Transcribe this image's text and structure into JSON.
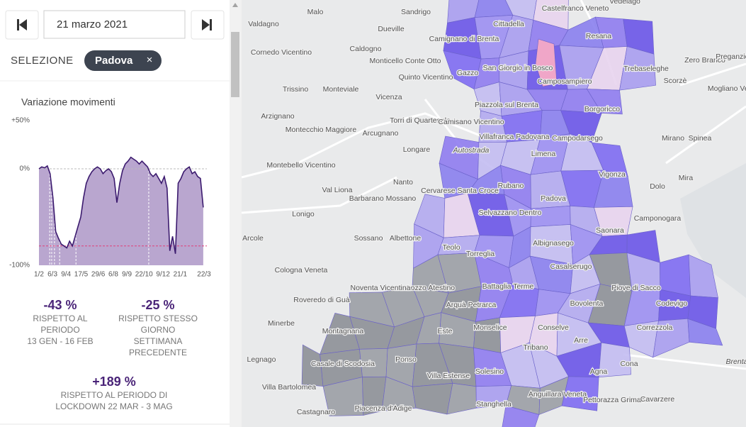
{
  "header": {
    "date": "21 marzo 2021"
  },
  "selection": {
    "label": "SELEZIONE",
    "value": "Padova",
    "remove": "×"
  },
  "chart_data": {
    "type": "area",
    "title": "Variazione movimenti",
    "x": [
      0,
      7,
      14,
      21,
      28,
      35,
      42,
      49,
      56,
      63,
      70,
      77,
      84,
      91,
      98,
      105,
      112,
      119,
      126,
      133,
      140,
      147,
      154,
      161,
      168,
      175,
      182,
      189,
      196,
      203,
      210,
      217,
      224,
      231,
      238,
      245,
      252,
      259,
      266,
      273,
      280,
      287,
      294,
      301,
      308,
      315,
      322,
      329,
      336,
      343,
      350,
      357,
      364,
      371,
      378,
      385,
      392,
      399,
      406,
      413
    ],
    "values": [
      0,
      2,
      1,
      3,
      -5,
      -30,
      -65,
      -72,
      -78,
      -80,
      -82,
      -75,
      -80,
      -70,
      -60,
      -50,
      -30,
      -15,
      -8,
      -3,
      0,
      2,
      0,
      -5,
      -2,
      0,
      -3,
      -10,
      -35,
      -15,
      -2,
      5,
      8,
      12,
      10,
      8,
      5,
      8,
      5,
      2,
      -5,
      -8,
      -5,
      -10,
      -15,
      -8,
      -20,
      -85,
      -70,
      -88,
      -15,
      -10,
      -3,
      0,
      2,
      -5,
      -3,
      -8,
      -10,
      -40
    ],
    "color": "#3b1a6e",
    "fill": "#b9a6cf",
    "xlim": [
      0,
      415
    ],
    "xticks": [
      {
        "value": 0,
        "label": "1/2"
      },
      {
        "value": 34,
        "label": "6/3"
      },
      {
        "value": 68,
        "label": "9/4"
      },
      {
        "value": 106,
        "label": "17/5"
      },
      {
        "value": 149,
        "label": "29/6"
      },
      {
        "value": 187,
        "label": "6/8"
      },
      {
        "value": 221,
        "label": "9/9"
      },
      {
        "value": 264,
        "label": "22/10"
      },
      {
        "value": 312,
        "label": "9/12"
      },
      {
        "value": 355,
        "label": "21/1"
      },
      {
        "value": 415,
        "label": "22/3"
      }
    ],
    "ylim": [
      -100,
      50
    ],
    "yticks": [
      {
        "value": 50,
        "label": "+50%"
      },
      {
        "value": 0,
        "label": "0%"
      },
      {
        "value": -100,
        "label": "-100%"
      }
    ],
    "reference_lines": [
      {
        "value": 0,
        "color": "#bbbbbb"
      },
      {
        "value": -80,
        "color": "#e0407a"
      }
    ],
    "vlines": [
      27,
      32,
      39,
      52,
      93,
      276
    ]
  },
  "stats": [
    {
      "value": "-43 %",
      "lines": [
        "RISPETTO AL",
        "PERIODO",
        "13 GEN - 16 FEB"
      ]
    },
    {
      "value": "-25 %",
      "lines": [
        "RISPETTO STESSO",
        "GIORNO",
        "SETTIMANA",
        "PRECEDENTE"
      ]
    },
    {
      "value": "+189 %",
      "lines": [
        "RISPETTO AL PERIODO DI",
        "LOCKDOWN 22 MAR - 3 MAG"
      ]
    }
  ],
  "map": {
    "places": [
      "Malo",
      "Sandrigo",
      "Castelfranco Veneto",
      "Vedelago",
      "Valdagno",
      "Dueville",
      "Cittadella",
      "Resana",
      "Cornedo Vicentino",
      "Caldogno",
      "Camignano di Brenta",
      "Monticello Conte Otto",
      "Quinto Vicentino",
      "San Giorgio in Bosco",
      "Zero Branco",
      "Preganziol",
      "Trissino",
      "Monteviale",
      "Gazzo",
      "Camposampiero",
      "Trebaseleghe",
      "Mogliano Veneto",
      "Scorzè",
      "Vicenza",
      "Piazzola sul Brenta",
      "Borgoricco",
      "Arzignano",
      "Torri di Quartesolo",
      "Camisano Vicentino",
      "Montecchio Maggiore",
      "Arcugnano",
      "Villafranca Padovana",
      "Campodarsego",
      "Mirano",
      "Spinea",
      "Autostrada",
      "Longare",
      "Limena",
      "Montebello Vicentino",
      "Vigonza",
      "Dolo",
      "Mira",
      "Val Liona",
      "Nanto",
      "Cervarese Santa Croce",
      "Rubano",
      "Padova",
      "Lonigo",
      "Barbarano Mossano",
      "Camponogara",
      "Sossano",
      "Albettone",
      "Selvazzano Dentro",
      "Saonara",
      "Arcole",
      "Teolo",
      "Torreglia",
      "Albignasego",
      "Casalserugo",
      "Cologna Veneta",
      "Lozzo Atestino",
      "Battaglia Terme",
      "Piove di Sacco",
      "Noventa Vicentina",
      "Roveredo di Guà",
      "Arquà Petrarca",
      "Bovolenta",
      "Codevigo",
      "Montagnana",
      "Este",
      "Monselice",
      "Conselve",
      "Correzzola",
      "Minerbe",
      "Arre",
      "Legnago",
      "Casale di Scodosia",
      "Ponso",
      "Tribano",
      "Cona",
      "Villa Estense",
      "Solesino",
      "Agna",
      "Villa Bartolomea",
      "Anguillara Veneta",
      "Pettorazza Grimani",
      "Cavarzere",
      "Castagnaro",
      "Piacenza d'Adige",
      "Stanghella",
      "Brenta"
    ]
  }
}
